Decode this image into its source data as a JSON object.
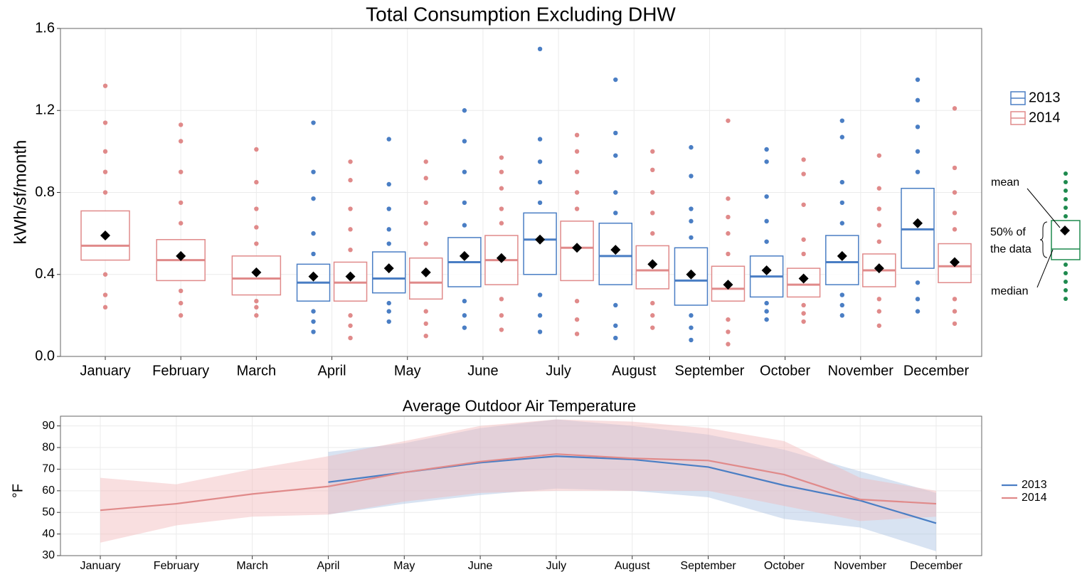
{
  "chart_data": [
    {
      "type": "box",
      "title": "Total Consumption Excluding DHW",
      "y_label": "kWh/sf/month",
      "categories": [
        "January",
        "February",
        "March",
        "April",
        "May",
        "June",
        "July",
        "August",
        "September",
        "October",
        "November",
        "December"
      ],
      "ylim": [
        0,
        1.6
      ],
      "yticks": [
        {
          "value": 0,
          "label": "0.0"
        },
        0.4,
        0.8,
        1.2,
        1.6
      ],
      "grid": true,
      "series": [
        {
          "name": "2013",
          "color": "#4a7ec4",
          "boxes": [
            null,
            null,
            null,
            {
              "q1": 0.27,
              "median": 0.36,
              "q3": 0.45,
              "mean": 0.39,
              "points": [
                0.12,
                0.17,
                0.22,
                0.5,
                0.6,
                0.77,
                0.9,
                1.14
              ]
            },
            {
              "q1": 0.31,
              "median": 0.38,
              "q3": 0.51,
              "mean": 0.43,
              "points": [
                0.17,
                0.22,
                0.26,
                0.55,
                0.62,
                0.72,
                0.84,
                1.06
              ]
            },
            {
              "q1": 0.34,
              "median": 0.46,
              "q3": 0.58,
              "mean": 0.49,
              "points": [
                0.14,
                0.2,
                0.27,
                0.64,
                0.75,
                0.9,
                1.05,
                1.2
              ]
            },
            {
              "q1": 0.4,
              "median": 0.57,
              "q3": 0.7,
              "mean": 0.57,
              "points": [
                0.12,
                0.2,
                0.3,
                0.75,
                0.85,
                0.95,
                1.06,
                1.5
              ]
            },
            {
              "q1": 0.35,
              "median": 0.49,
              "q3": 0.65,
              "mean": 0.52,
              "points": [
                0.09,
                0.15,
                0.25,
                0.7,
                0.8,
                0.98,
                1.09,
                1.35
              ]
            },
            {
              "q1": 0.25,
              "median": 0.37,
              "q3": 0.53,
              "mean": 0.4,
              "points": [
                0.08,
                0.14,
                0.2,
                0.58,
                0.66,
                0.72,
                0.88,
                1.02
              ]
            },
            {
              "q1": 0.29,
              "median": 0.39,
              "q3": 0.49,
              "mean": 0.42,
              "points": [
                0.18,
                0.22,
                0.26,
                0.56,
                0.66,
                0.78,
                0.95,
                1.01
              ]
            },
            {
              "q1": 0.35,
              "median": 0.46,
              "q3": 0.59,
              "mean": 0.49,
              "points": [
                0.2,
                0.25,
                0.3,
                0.65,
                0.75,
                0.85,
                1.07,
                1.15
              ]
            },
            {
              "q1": 0.43,
              "median": 0.62,
              "q3": 0.82,
              "mean": 0.65,
              "points": [
                0.22,
                0.28,
                0.36,
                0.9,
                1.0,
                1.12,
                1.25,
                1.35
              ]
            }
          ]
        },
        {
          "name": "2014",
          "color": "#e08a8a",
          "boxes": [
            {
              "q1": 0.47,
              "median": 0.54,
              "q3": 0.71,
              "mean": 0.59,
              "points": [
                0.24,
                0.3,
                0.4,
                0.8,
                0.9,
                1.0,
                1.14,
                1.32
              ]
            },
            {
              "q1": 0.37,
              "median": 0.47,
              "q3": 0.57,
              "mean": 0.49,
              "points": [
                0.2,
                0.26,
                0.32,
                0.65,
                0.75,
                0.9,
                1.05,
                1.13
              ]
            },
            {
              "q1": 0.3,
              "median": 0.38,
              "q3": 0.49,
              "mean": 0.41,
              "points": [
                0.2,
                0.24,
                0.27,
                0.55,
                0.63,
                0.72,
                0.85,
                1.01
              ]
            },
            {
              "q1": 0.27,
              "median": 0.36,
              "q3": 0.46,
              "mean": 0.39,
              "points": [
                0.09,
                0.15,
                0.2,
                0.52,
                0.62,
                0.72,
                0.86,
                0.95
              ]
            },
            {
              "q1": 0.28,
              "median": 0.36,
              "q3": 0.48,
              "mean": 0.41,
              "points": [
                0.1,
                0.16,
                0.22,
                0.55,
                0.65,
                0.75,
                0.87,
                0.95
              ]
            },
            {
              "q1": 0.35,
              "median": 0.47,
              "q3": 0.59,
              "mean": 0.48,
              "points": [
                0.13,
                0.2,
                0.28,
                0.65,
                0.72,
                0.82,
                0.9,
                0.97
              ]
            },
            {
              "q1": 0.37,
              "median": 0.53,
              "q3": 0.66,
              "mean": 0.53,
              "points": [
                0.11,
                0.18,
                0.27,
                0.72,
                0.8,
                0.9,
                1.0,
                1.08
              ]
            },
            {
              "q1": 0.33,
              "median": 0.42,
              "q3": 0.54,
              "mean": 0.45,
              "points": [
                0.14,
                0.2,
                0.26,
                0.6,
                0.7,
                0.8,
                0.91,
                1.0
              ]
            },
            {
              "q1": 0.27,
              "median": 0.33,
              "q3": 0.44,
              "mean": 0.35,
              "points": [
                0.06,
                0.12,
                0.18,
                0.5,
                0.6,
                0.68,
                0.77,
                1.15
              ]
            },
            {
              "q1": 0.29,
              "median": 0.35,
              "q3": 0.43,
              "mean": 0.38,
              "points": [
                0.17,
                0.21,
                0.25,
                0.5,
                0.57,
                0.74,
                0.89,
                0.96
              ]
            },
            {
              "q1": 0.34,
              "median": 0.42,
              "q3": 0.5,
              "mean": 0.43,
              "points": [
                0.15,
                0.22,
                0.28,
                0.56,
                0.64,
                0.72,
                0.82,
                0.98
              ]
            },
            {
              "q1": 0.36,
              "median": 0.44,
              "q3": 0.55,
              "mean": 0.46,
              "points": [
                0.16,
                0.22,
                0.28,
                0.62,
                0.7,
                0.8,
                0.92,
                1.21
              ]
            }
          ]
        }
      ],
      "key": {
        "mean": "mean",
        "box": "50% of\nthe data",
        "median": "median"
      }
    },
    {
      "type": "line_band",
      "title": "Average Outdoor Air Temperature",
      "y_label": "°F",
      "categories": [
        "January",
        "February",
        "March",
        "April",
        "May",
        "June",
        "July",
        "August",
        "September",
        "October",
        "November",
        "December"
      ],
      "ylim": [
        30,
        94.5
      ],
      "yticks": [
        30,
        40,
        50,
        60,
        70,
        80,
        90
      ],
      "grid": true,
      "series": [
        {
          "name": "2013",
          "color": "#4a7ec4",
          "band_color": "#a9c0e3",
          "values": [
            null,
            null,
            null,
            64,
            68.5,
            73,
            76,
            74.5,
            71,
            62.5,
            55.5,
            45
          ],
          "lower": [
            null,
            null,
            null,
            49,
            54,
            58,
            61,
            60,
            57,
            47,
            43,
            32
          ],
          "upper": [
            null,
            null,
            null,
            78,
            82,
            89,
            93,
            90,
            86,
            79,
            69,
            59
          ]
        },
        {
          "name": "2014",
          "color": "#e08a8a",
          "band_color": "#f2b8bb",
          "values": [
            51,
            54,
            58.5,
            62,
            68.5,
            73.5,
            77,
            75,
            74,
            67.5,
            56,
            54
          ],
          "lower": [
            36,
            44,
            48,
            49,
            55,
            59,
            60,
            60,
            60,
            53,
            46,
            48
          ],
          "upper": [
            66,
            63,
            70,
            76,
            83,
            90,
            93,
            92,
            89,
            83,
            66,
            60
          ]
        }
      ]
    }
  ]
}
